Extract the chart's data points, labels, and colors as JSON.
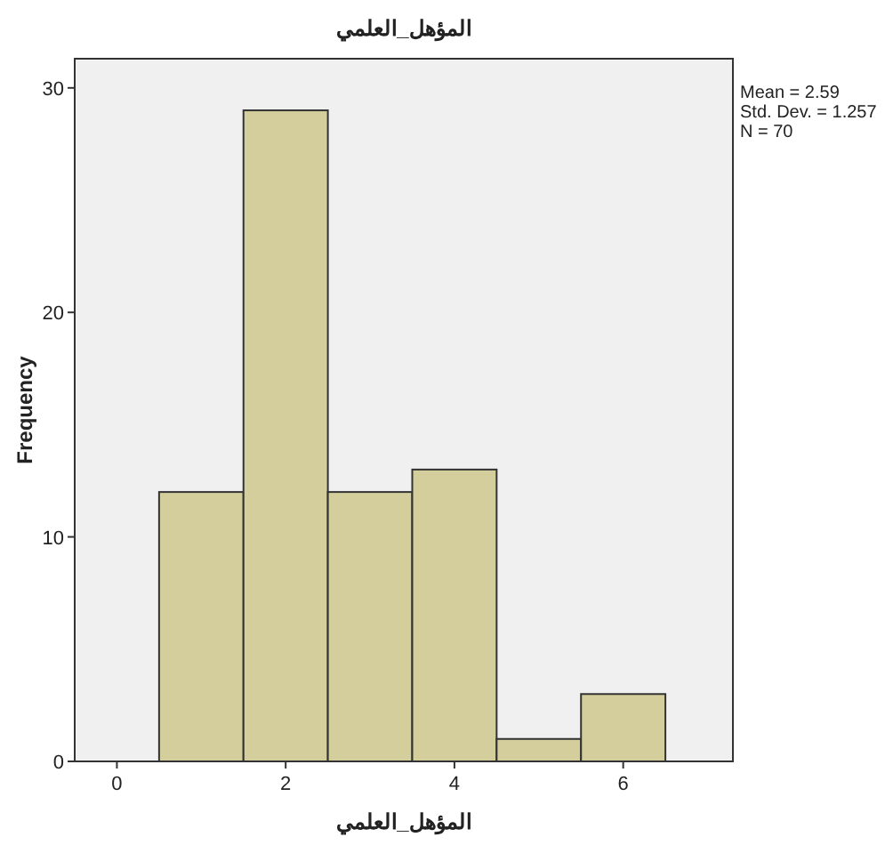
{
  "chart_data": {
    "type": "histogram",
    "title": "المؤهل_العلمي",
    "xlabel": "المؤهل_العلمي",
    "ylabel": "Frequency",
    "bins": [
      0.5,
      1.5,
      2.5,
      3.5,
      4.5,
      5.5,
      6.5
    ],
    "values": [
      12,
      29,
      12,
      13,
      1,
      3
    ],
    "color": "#d3ce9b",
    "xlim": [
      -0.5,
      7.3
    ],
    "ylim": [
      0,
      31.3
    ],
    "xticks": [
      0,
      2,
      4,
      6
    ],
    "yticks": [
      0,
      10,
      20,
      30
    ],
    "annotations": [
      "Mean = 2.59",
      "Std. Dev. = 1.257",
      "N = 70"
    ]
  }
}
